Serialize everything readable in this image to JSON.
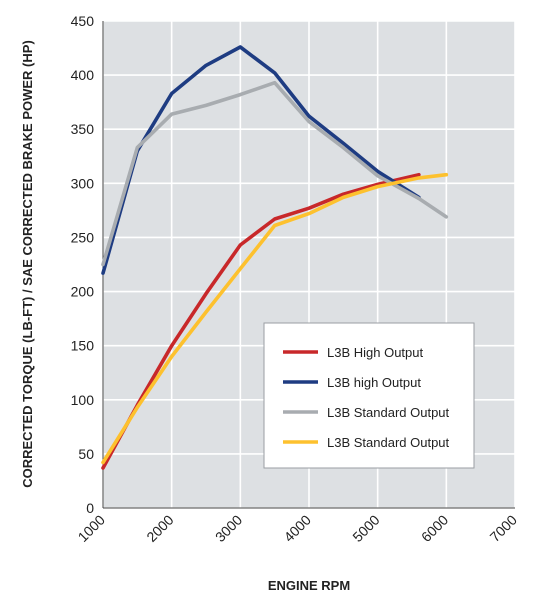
{
  "chart_data": {
    "type": "line",
    "title": "",
    "xlabel": "ENGINE RPM",
    "ylabel": "CORRECTED TORQUE (LB-FT) / SAE CORRECTED BRAKE POWER (HP)",
    "xlim": [
      1000,
      7000
    ],
    "ylim": [
      0,
      450
    ],
    "x_ticks": [
      "1000",
      "2000",
      "3000",
      "4000",
      "5000",
      "6000",
      "7000"
    ],
    "y_ticks": [
      "0",
      "50",
      "100",
      "150",
      "200",
      "250",
      "300",
      "350",
      "400",
      "450"
    ],
    "grid": true,
    "legend_position": "lower-right",
    "series": [
      {
        "name": "L3B High Output",
        "color": "#c8282a",
        "points": [
          [
            1000,
            37
          ],
          [
            1500,
            95
          ],
          [
            2000,
            150
          ],
          [
            2500,
            198
          ],
          [
            3000,
            243
          ],
          [
            3500,
            267
          ],
          [
            4000,
            277
          ],
          [
            4500,
            290
          ],
          [
            5000,
            299
          ],
          [
            5600,
            308
          ]
        ]
      },
      {
        "name": "L3B high Output",
        "color": "#1e3c82",
        "points": [
          [
            1000,
            217
          ],
          [
            1500,
            330
          ],
          [
            2000,
            383
          ],
          [
            2500,
            409
          ],
          [
            3000,
            426
          ],
          [
            3500,
            402
          ],
          [
            4000,
            362
          ],
          [
            4500,
            337
          ],
          [
            5000,
            311
          ],
          [
            5600,
            287
          ]
        ]
      },
      {
        "name": "L3B Standard Output",
        "color": "#a8acb0",
        "points": [
          [
            1000,
            225
          ],
          [
            1500,
            333
          ],
          [
            2000,
            364
          ],
          [
            2500,
            372
          ],
          [
            3000,
            382
          ],
          [
            3500,
            393
          ],
          [
            4000,
            357
          ],
          [
            4500,
            333
          ],
          [
            5000,
            307
          ],
          [
            5600,
            286
          ],
          [
            6000,
            269
          ]
        ]
      },
      {
        "name": "L3B Standard Output",
        "color": "#fdc12e",
        "points": [
          [
            1000,
            42
          ],
          [
            1500,
            93
          ],
          [
            2000,
            140
          ],
          [
            2500,
            181
          ],
          [
            3000,
            221
          ],
          [
            3500,
            261
          ],
          [
            4000,
            272
          ],
          [
            4500,
            287
          ],
          [
            5000,
            297
          ],
          [
            5600,
            305
          ],
          [
            6000,
            308
          ]
        ]
      }
    ]
  }
}
